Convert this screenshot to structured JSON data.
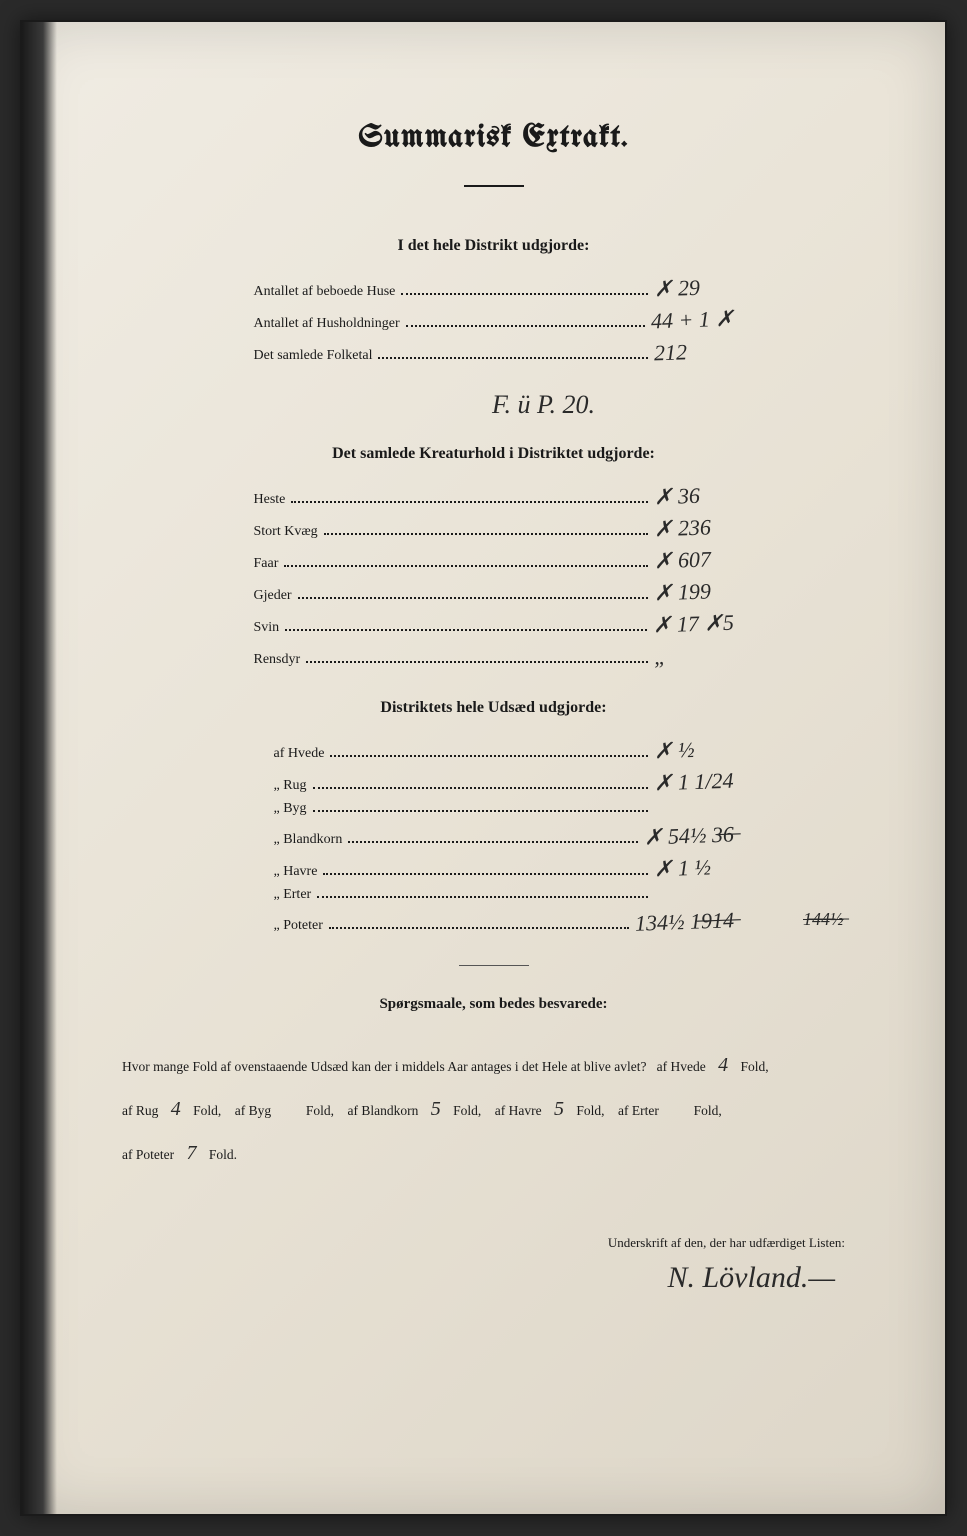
{
  "colors": {
    "paper_light": "#f0ece3",
    "paper_dark": "#ddd6c8",
    "ink": "#1a1a1a",
    "handwriting": "#2a2a2a"
  },
  "title": "Summarisk Extrakt.",
  "section1": {
    "header": "I det hele Distrikt udgjorde:",
    "rows": [
      {
        "label": "Antallet af beboede Huse",
        "value": "✗ 29"
      },
      {
        "label": "Antallet af Husholdninger",
        "value": "44 + 1 ✗"
      },
      {
        "label": "Det samlede Folketal",
        "value": "212"
      }
    ],
    "annotation": "F. ü P. 20."
  },
  "section2": {
    "header": "Det samlede Kreaturhold i Distriktet udgjorde:",
    "rows": [
      {
        "label": "Heste",
        "value": "✗ 36"
      },
      {
        "label": "Stort Kvæg",
        "value": "✗ 236"
      },
      {
        "label": "Faar",
        "value": "✗ 607"
      },
      {
        "label": "Gjeder",
        "value": "✗ 199"
      },
      {
        "label": "Svin",
        "value": "✗ 17   ✗5"
      },
      {
        "label": "Rensdyr",
        "value": "„"
      }
    ]
  },
  "section3": {
    "header": "Distriktets hele Udsæd udgjorde:",
    "rows": [
      {
        "label": "af Hvede",
        "value": "✗ ½"
      },
      {
        "label": "„ Rug",
        "value": "✗ 1 1/24"
      },
      {
        "label": "„ Byg",
        "value": ""
      },
      {
        "label": "„ Blandkorn",
        "value": "✗ 54½  3̶6̶"
      },
      {
        "label": "„ Havre",
        "value": "✗ 1 ½"
      },
      {
        "label": "„ Erter",
        "value": ""
      },
      {
        "label": "„ Poteter",
        "value": "134½ 1̶9̶1̶4̶",
        "margin": "1̶4̶4̶½̶"
      }
    ]
  },
  "questions": {
    "header": "Spørgsmaale, som bedes besvarede:",
    "intro": "Hvor mange Fold af ovenstaaende Udsæd kan der i middels Aar antages i det Hele at blive avlet?",
    "items": [
      {
        "label": "af Hvede",
        "value": "4",
        "unit": "Fold,"
      },
      {
        "label": "af Rug",
        "value": "4",
        "unit": "Fold,"
      },
      {
        "label": "af Byg",
        "value": "",
        "unit": "Fold,"
      },
      {
        "label": "af Blandkorn",
        "value": "5",
        "unit": "Fold,"
      },
      {
        "label": "af Havre",
        "value": "5",
        "unit": "Fold,"
      },
      {
        "label": "af Erter",
        "value": "",
        "unit": "Fold,"
      },
      {
        "label": "af Poteter",
        "value": "7",
        "unit": "Fold."
      }
    ]
  },
  "signature": {
    "label": "Underskrift af den, der har udfærdiget Listen:",
    "name": "N. Lövland.—"
  }
}
